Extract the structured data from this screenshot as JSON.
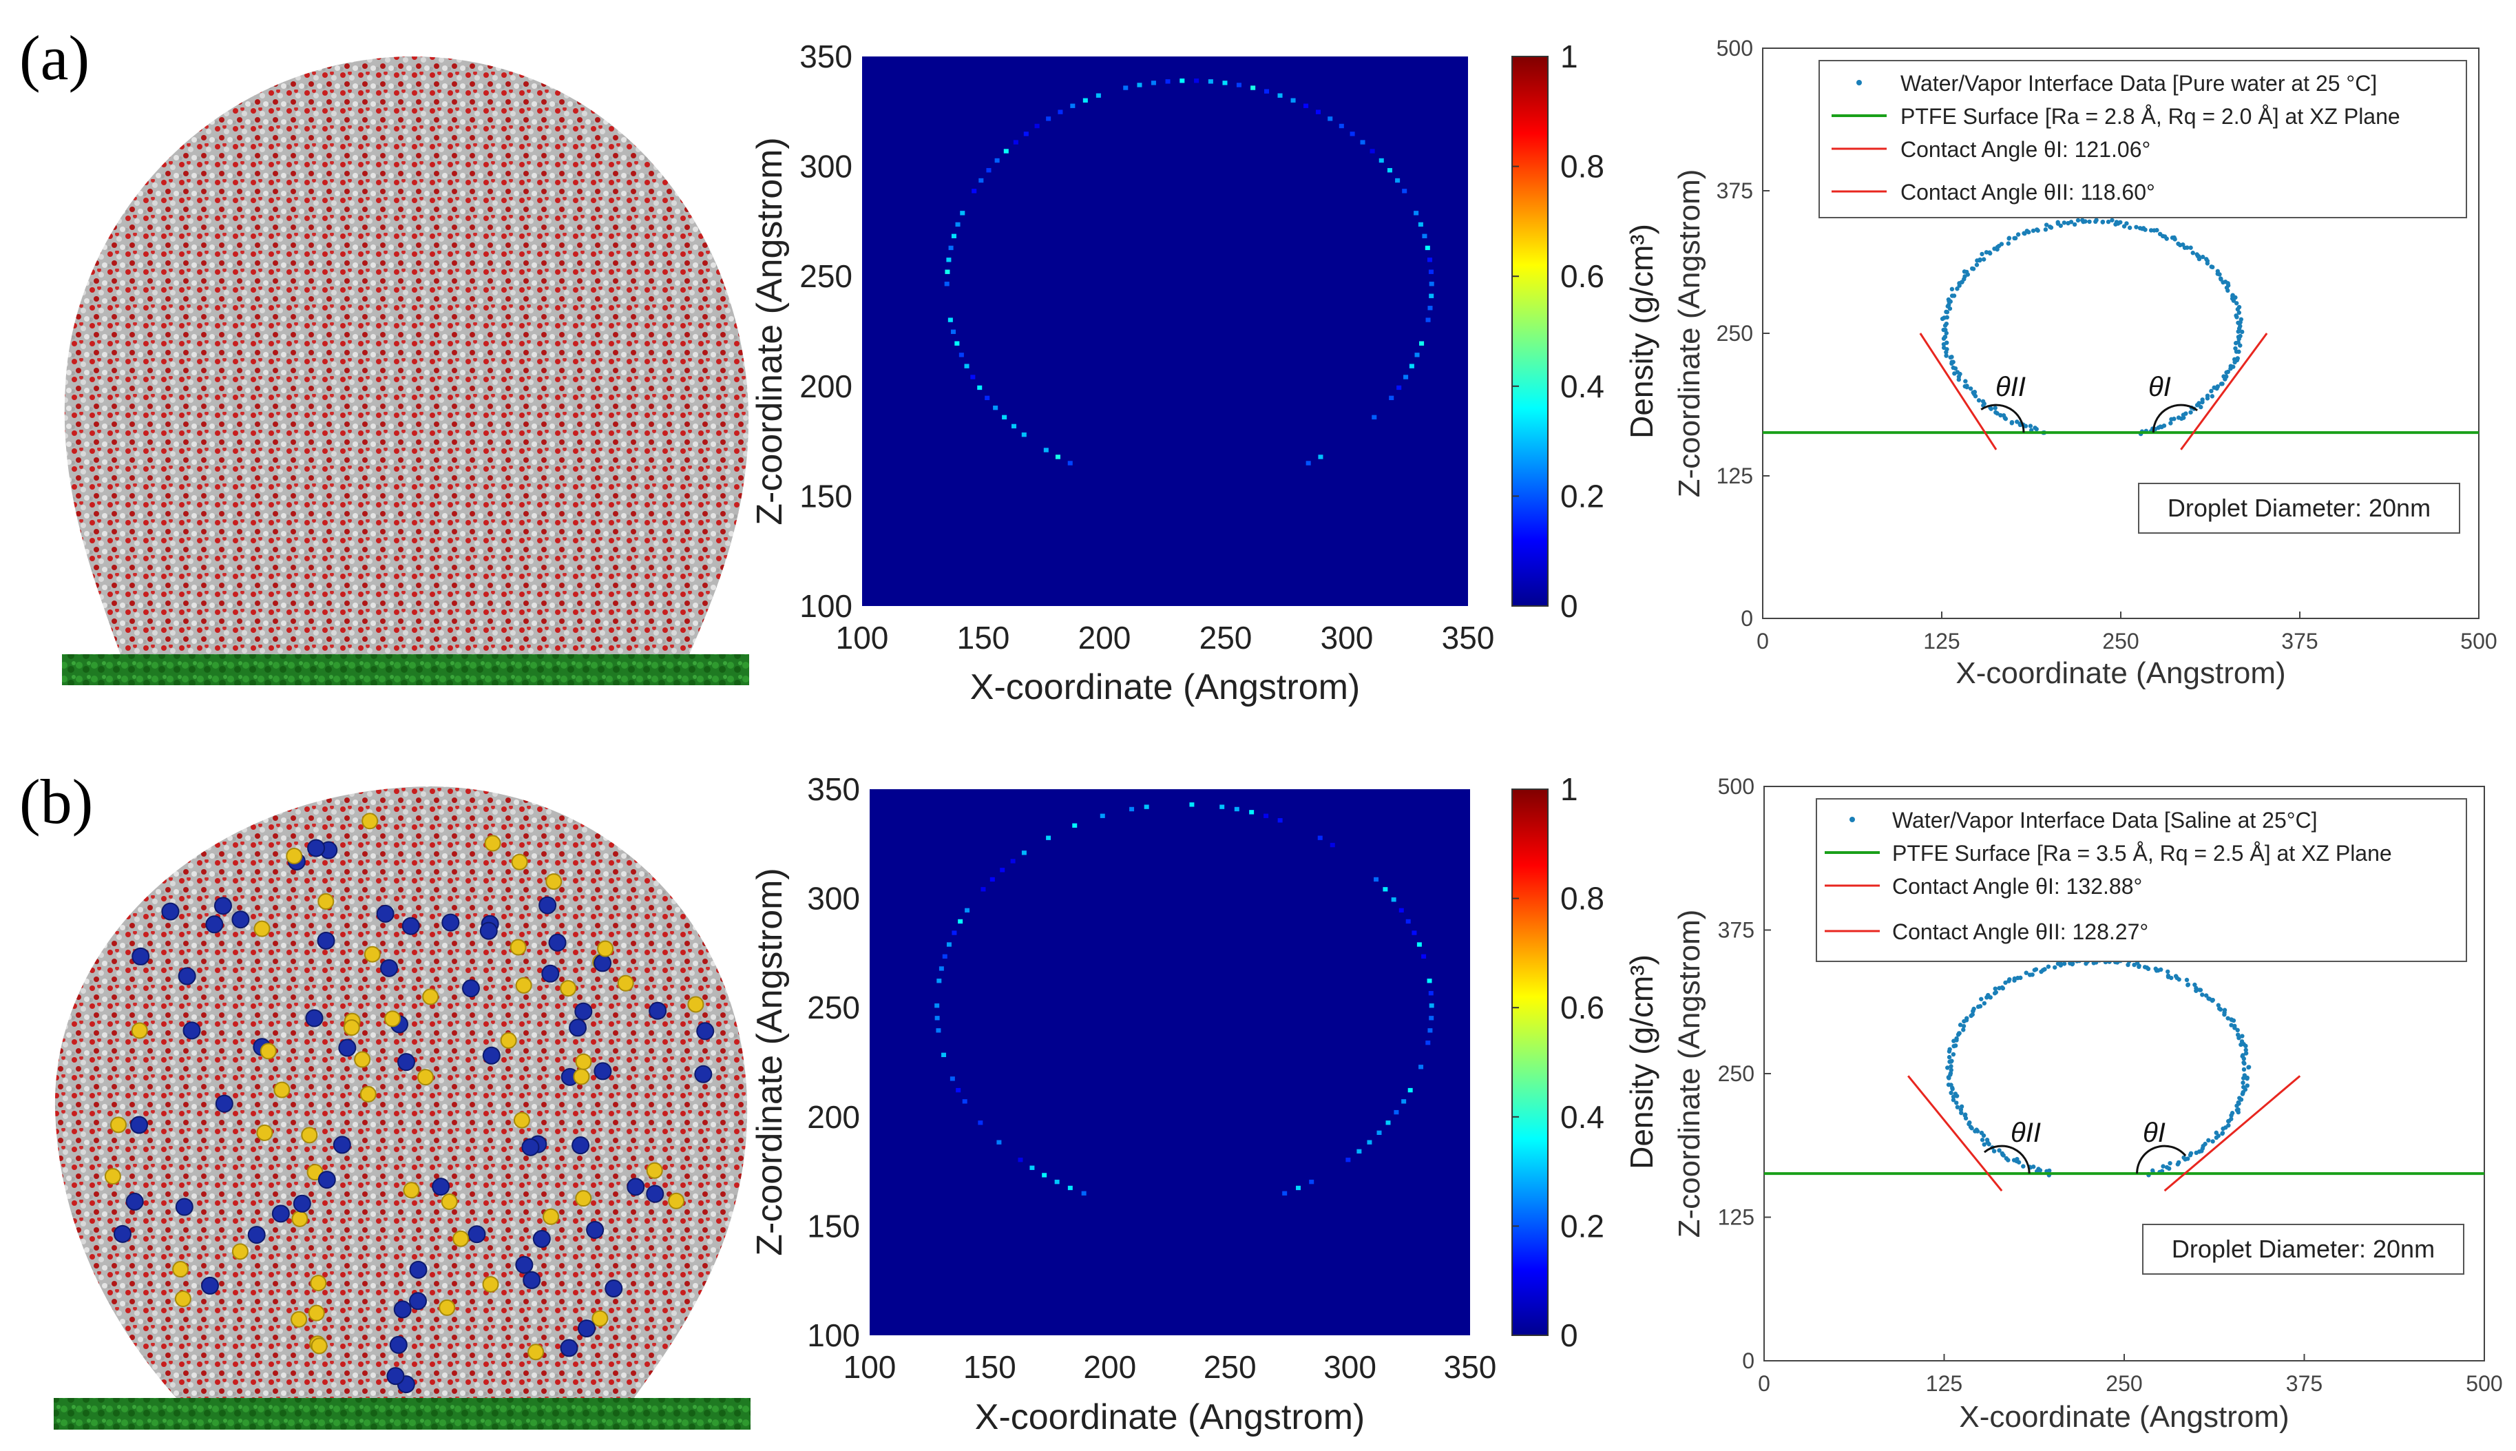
{
  "figure": {
    "panels": [
      {
        "label": "(a)",
        "heatmap_x_ticks": [
          "100",
          "150",
          "200",
          "250",
          "300",
          "350"
        ],
        "heatmap_y_ticks": [
          "100",
          "150",
          "200",
          "250",
          "300",
          "350"
        ],
        "heatmap_xlabel": "X-coordinate (Angstrom)",
        "heatmap_ylabel": "Z-coordinate (Angstrom)",
        "colorbar_ticks": [
          "0",
          "0.2",
          "0.4",
          "0.6",
          "0.8",
          "1"
        ],
        "colorbar_label": "Density (g/cm³)",
        "contact_x_ticks": [
          "0",
          "125",
          "250",
          "375",
          "500"
        ],
        "contact_y_ticks": [
          "0",
          "125",
          "250",
          "375",
          "500"
        ],
        "contact_xlabel": "X-coordinate (Angstrom)",
        "contact_ylabel": "Z-coordinate (Angstrom)",
        "legend": [
          "Water/Vapor Interface Data [Pure water at 25 °C]",
          "PTFE Surface [Ra = 2.8 Å, Rq = 2.0 Å] at XZ Plane",
          "Contact Angle θI: 121.06°",
          "Contact Angle θII: 118.60°"
        ],
        "angle_label_left": "θII",
        "angle_label_right": "θI",
        "diameter_label": "Droplet Diameter: 20nm"
      },
      {
        "label": "(b)",
        "heatmap_x_ticks": [
          "100",
          "150",
          "200",
          "250",
          "300",
          "350"
        ],
        "heatmap_y_ticks": [
          "100",
          "150",
          "200",
          "250",
          "300",
          "350"
        ],
        "heatmap_xlabel": "X-coordinate (Angstrom)",
        "heatmap_ylabel": "Z-coordinate (Angstrom)",
        "colorbar_ticks": [
          "0",
          "0.2",
          "0.4",
          "0.6",
          "0.8",
          "1"
        ],
        "colorbar_label": "Density (g/cm³)",
        "contact_x_ticks": [
          "0",
          "125",
          "250",
          "375",
          "500"
        ],
        "contact_y_ticks": [
          "0",
          "125",
          "250",
          "375",
          "500"
        ],
        "contact_xlabel": "X-coordinate (Angstrom)",
        "contact_ylabel": "Z-coordinate (Angstrom)",
        "legend": [
          "Water/Vapor Interface Data [Saline at 25°C]",
          "PTFE Surface [Ra = 3.5 Å, Rq = 2.5 Å] at XZ Plane",
          "Contact Angle θI: 132.88°",
          "Contact Angle θII: 128.27°"
        ],
        "angle_label_left": "θII",
        "angle_label_right": "θI",
        "diameter_label": "Droplet Diameter: 20nm"
      }
    ]
  },
  "chart_data": [
    {
      "type": "heatmap",
      "panel": "(a)",
      "title": "",
      "xlabel": "X-coordinate (Angstrom)",
      "ylabel": "Z-coordinate (Angstrom)",
      "xlim": [
        100,
        350
      ],
      "ylim": [
        100,
        350
      ],
      "colorbar": {
        "label": "Density (g/cm³)",
        "range": [
          0,
          1
        ],
        "colormap": "jet"
      },
      "background_value": 0,
      "interface_arc": {
        "center_x": 235,
        "center_z": 246,
        "radius_x": 100,
        "radius_z": 93,
        "z_min": 165,
        "density_range": [
          0.1,
          0.4
        ]
      }
    },
    {
      "type": "scatter",
      "panel": "(a)",
      "title": "",
      "xlabel": "X-coordinate (Angstrom)",
      "ylabel": "Z-coordinate (Angstrom)",
      "xlim": [
        0,
        500
      ],
      "ylim": [
        0,
        500
      ],
      "series": [
        {
          "name": "Water/Vapor Interface Data [Pure water at 25 °C]",
          "kind": "points",
          "color": "#1a7fb8",
          "arc": {
            "center_x": 230,
            "center_z": 253,
            "radius_x": 103,
            "radius_z": 95,
            "z_min": 163
          }
        },
        {
          "name": "PTFE Surface [Ra = 2.8 Å, Rq = 2.0 Å] at XZ Plane",
          "kind": "hline",
          "color": "#1aa01a",
          "z": 163
        },
        {
          "name": "Contact Angle θI: 121.06°",
          "kind": "line",
          "color": "#e8261f",
          "x": [
            292,
            352
          ],
          "z": [
            148,
            250
          ]
        },
        {
          "name": "Contact Angle θII: 118.60°",
          "kind": "line",
          "color": "#e8261f",
          "x": [
            163,
            110
          ],
          "z": [
            148,
            250
          ]
        }
      ],
      "legend_position": "top"
    },
    {
      "type": "heatmap",
      "panel": "(b)",
      "title": "",
      "xlabel": "X-coordinate (Angstrom)",
      "ylabel": "Z-coordinate (Angstrom)",
      "xlim": [
        100,
        350
      ],
      "ylim": [
        100,
        350
      ],
      "colorbar": {
        "label": "Density (g/cm³)",
        "range": [
          0,
          1
        ],
        "colormap": "jet"
      },
      "background_value": 0,
      "interface_arc": {
        "center_x": 231,
        "center_z": 250,
        "radius_x": 103,
        "radius_z": 93,
        "z_min": 165,
        "density_range": [
          0.1,
          0.4
        ]
      }
    },
    {
      "type": "scatter",
      "panel": "(b)",
      "title": "",
      "xlabel": "X-coordinate (Angstrom)",
      "ylabel": "Z-coordinate (Angstrom)",
      "xlim": [
        0,
        500
      ],
      "ylim": [
        0,
        500
      ],
      "series": [
        {
          "name": "Water/Vapor Interface Data [Saline at 25°C]",
          "kind": "points",
          "color": "#1a7fb8",
          "arc": {
            "center_x": 232,
            "center_z": 253,
            "radius_x": 103,
            "radius_z": 95,
            "z_min": 163
          }
        },
        {
          "name": "PTFE Surface [Ra = 3.5 Å, Rq = 2.5 Å] at XZ Plane",
          "kind": "hline",
          "color": "#1aa01a",
          "z": 163
        },
        {
          "name": "Contact Angle θI: 132.88°",
          "kind": "line",
          "color": "#e8261f",
          "x": [
            278,
            372
          ],
          "z": [
            148,
            248
          ]
        },
        {
          "name": "Contact Angle θII: 128.27°",
          "kind": "line",
          "color": "#e8261f",
          "x": [
            165,
            100
          ],
          "z": [
            148,
            248
          ]
        }
      ],
      "legend_position": "top"
    }
  ]
}
